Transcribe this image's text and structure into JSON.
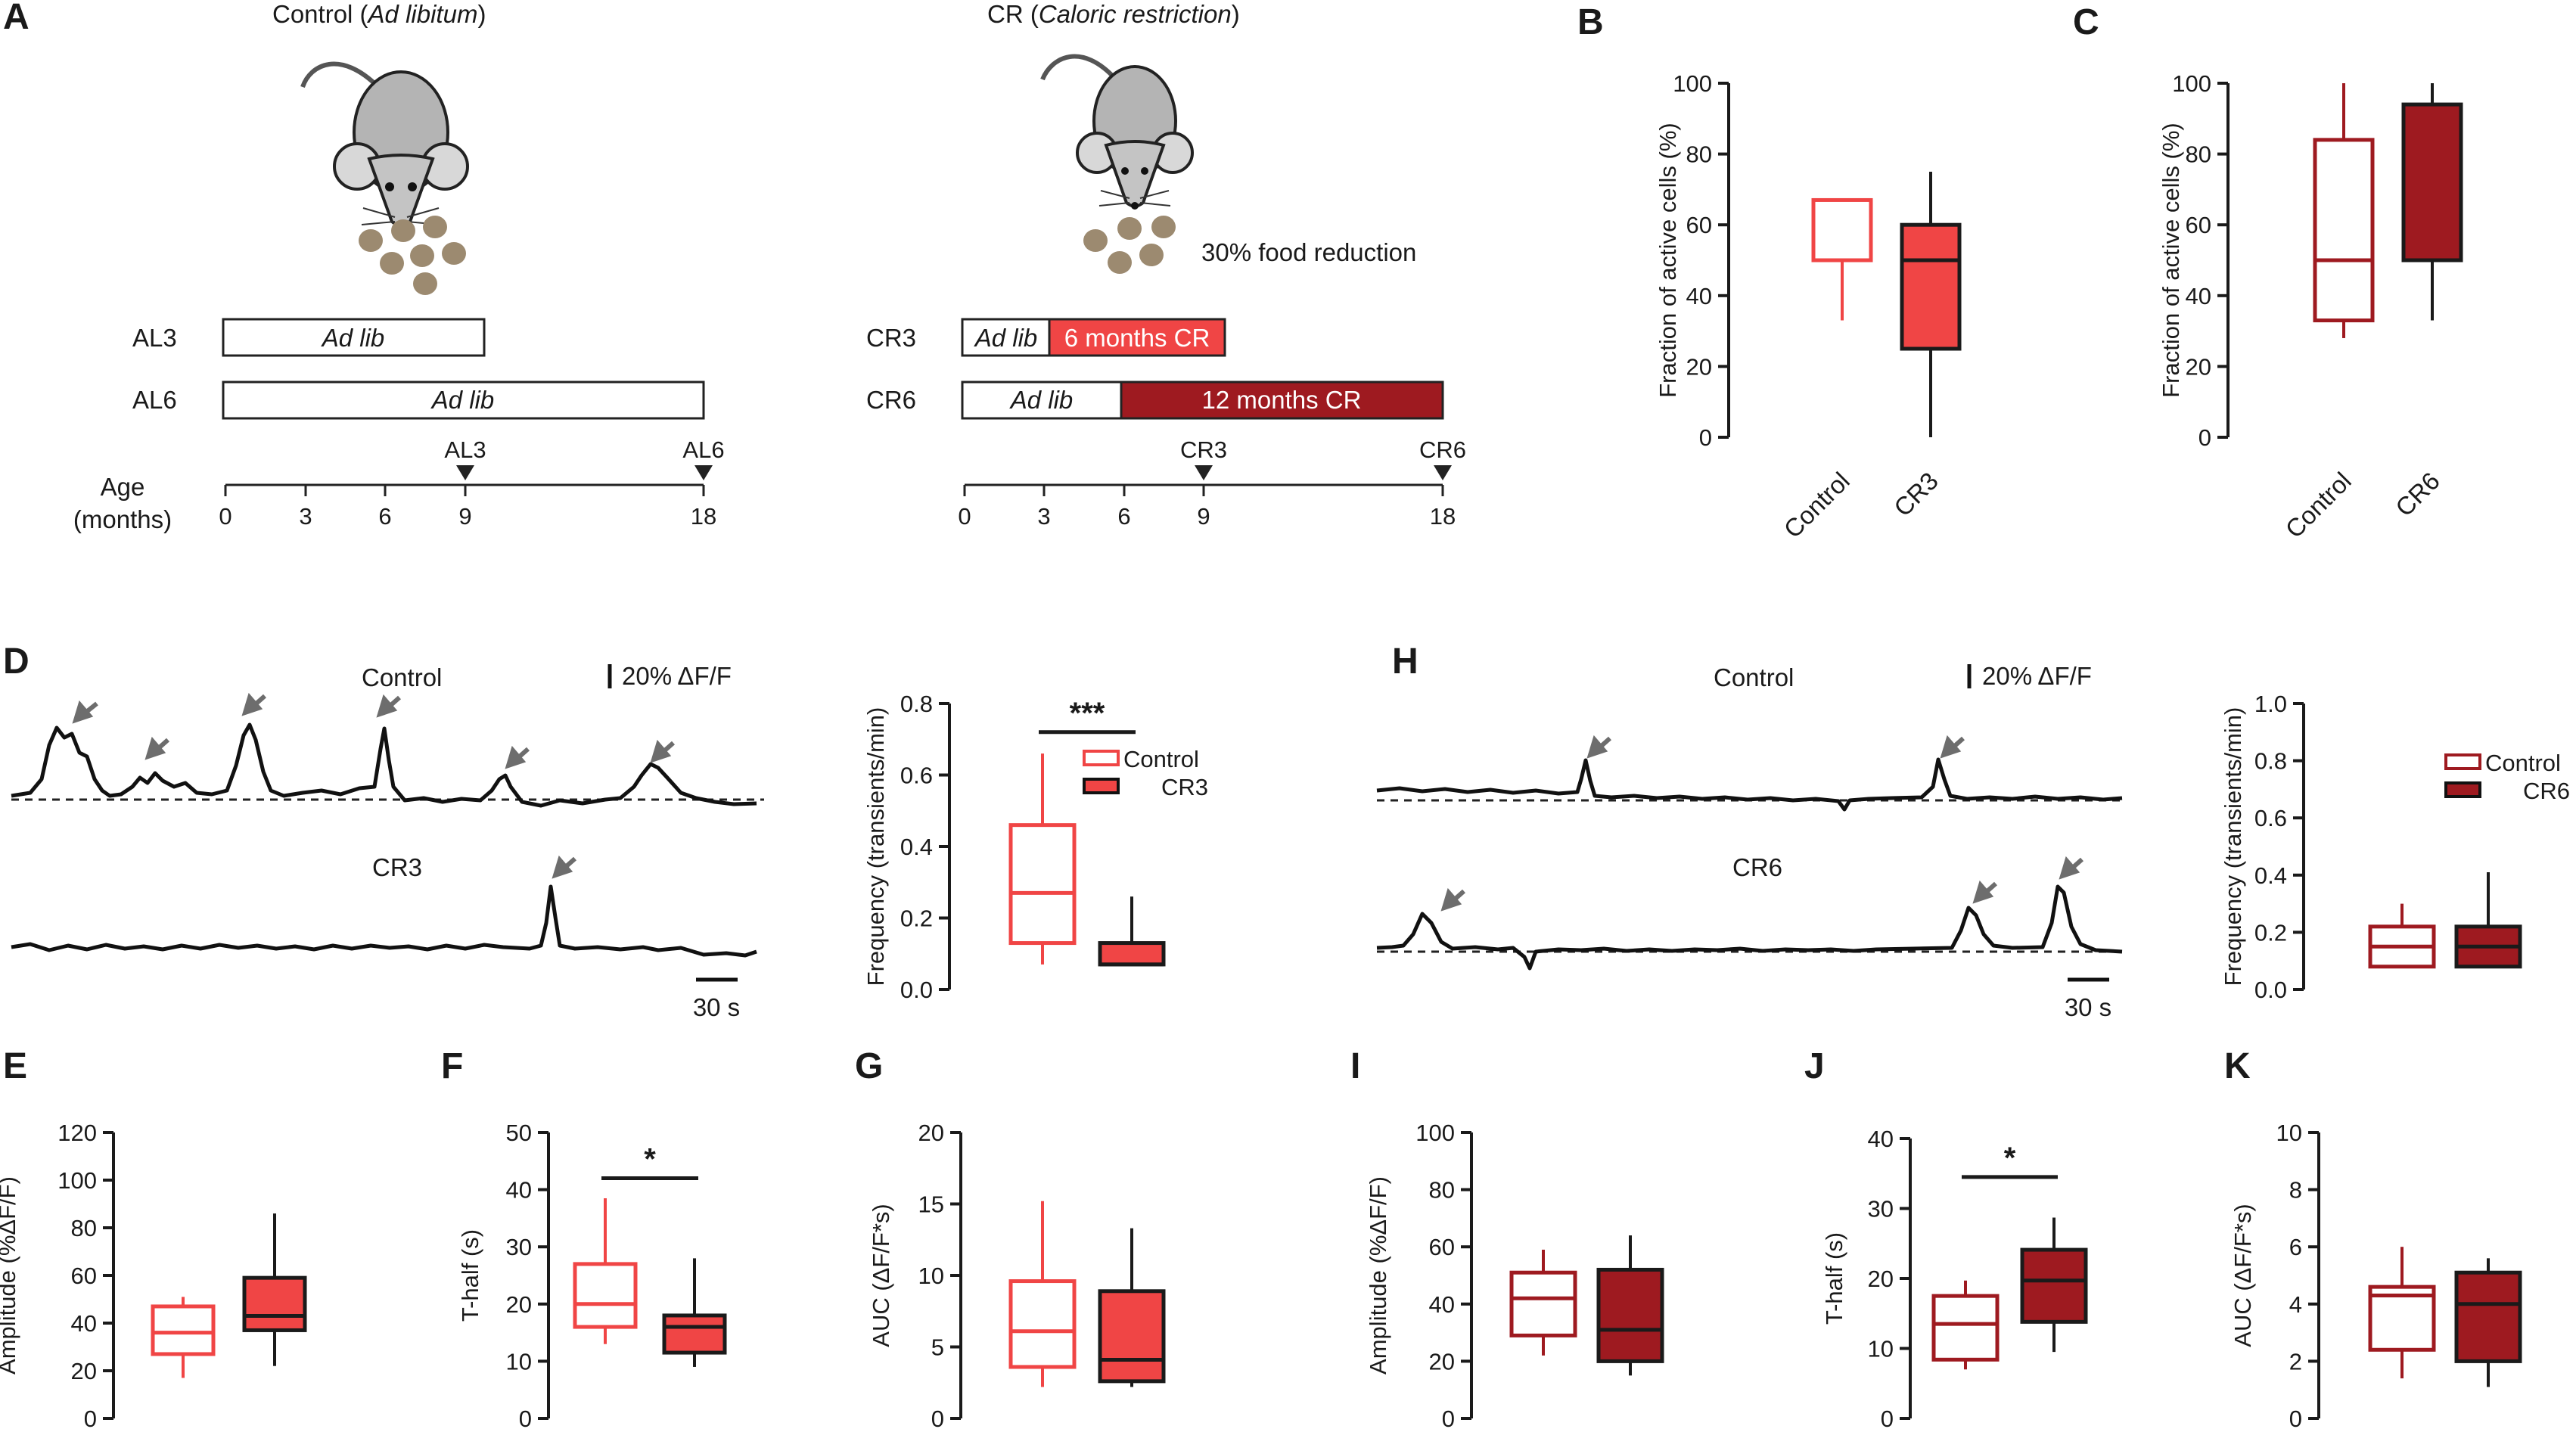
{
  "colors": {
    "cr3": "#f04545",
    "cr6": "#9e1a20",
    "ink": "#1a1a1a",
    "arrow": "#6d6d6d",
    "pellet": "#9c8a70",
    "mouse_body": "#b4b4b4"
  },
  "panel_a": {
    "letter": "A",
    "control_title": "Control (",
    "control_title_ital": "Ad libitum",
    "control_title_end": ")",
    "cr_title": "CR (",
    "cr_title_ital": "Caloric restriction",
    "cr_title_end": ")",
    "food_reduction": "30% food reduction",
    "ad_lib": "Ad lib",
    "cr3_bar": "6 months CR",
    "cr6_bar": "12 months CR",
    "rows": {
      "al3": "AL3",
      "al6": "AL6",
      "cr3": "CR3",
      "cr6": "CR6"
    },
    "age_label_1": "Age",
    "age_label_2": "(months)",
    "ticks": [
      "0",
      "3",
      "6",
      "9",
      "18"
    ],
    "markers": {
      "al3": "AL3",
      "al6": "AL6",
      "cr3": "CR3",
      "cr6": "CR6"
    }
  },
  "traces": {
    "d_letter": "D",
    "h_letter": "H",
    "control": "Control",
    "cr3": "CR3",
    "cr6": "CR6",
    "scale_amp": "20% ΔF/F",
    "scale_time": "30 s"
  },
  "legend": {
    "control": "Control",
    "cr3": "CR3",
    "cr6": "CR6"
  },
  "chart_data": [
    {
      "id": "B",
      "type": "box",
      "ylabel": "Fraction of active cells (%)",
      "ylim": [
        0,
        100
      ],
      "yticks": [
        0,
        20,
        40,
        60,
        80,
        100
      ],
      "categories": [
        "Control",
        "CR3"
      ],
      "series": [
        {
          "name": "Control",
          "min": 33,
          "q1": 50,
          "median": 50,
          "q3": 67,
          "max": 67,
          "filled": false,
          "color": "#f04545"
        },
        {
          "name": "CR3",
          "min": 0,
          "q1": 25,
          "median": 50,
          "q3": 60,
          "max": 75,
          "filled": true,
          "color": "#f04545"
        }
      ]
    },
    {
      "id": "C",
      "type": "box",
      "ylabel": "Fraction of active cells (%)",
      "ylim": [
        0,
        100
      ],
      "yticks": [
        0,
        20,
        40,
        60,
        80,
        100
      ],
      "categories": [
        "Control",
        "CR6"
      ],
      "series": [
        {
          "name": "Control",
          "min": 28,
          "q1": 33,
          "median": 50,
          "q3": 84,
          "max": 100,
          "filled": false,
          "color": "#9e1a20"
        },
        {
          "name": "CR6",
          "min": 33,
          "q1": 50,
          "median": 50,
          "q3": 94,
          "max": 100,
          "filled": true,
          "color": "#9e1a20"
        }
      ]
    },
    {
      "id": "D-freq",
      "type": "box",
      "ylabel": "Frequency (transients/min)",
      "ylim": [
        0,
        0.8
      ],
      "yticks": [
        0.0,
        0.2,
        0.4,
        0.6,
        0.8
      ],
      "tick_decimals": 1,
      "categories": [
        "Control",
        "CR3"
      ],
      "significance": "***",
      "series": [
        {
          "name": "Control",
          "min": 0.07,
          "q1": 0.13,
          "median": 0.27,
          "q3": 0.46,
          "max": 0.66,
          "filled": false,
          "color": "#f04545"
        },
        {
          "name": "CR3",
          "min": 0.07,
          "q1": 0.07,
          "median": 0.07,
          "q3": 0.13,
          "max": 0.26,
          "filled": true,
          "color": "#f04545"
        }
      ]
    },
    {
      "id": "H-freq",
      "type": "box",
      "ylabel": "Frequency (transients/min)",
      "ylim": [
        0,
        1.0
      ],
      "yticks": [
        0.0,
        0.2,
        0.4,
        0.6,
        0.8,
        1.0
      ],
      "tick_decimals": 1,
      "categories": [
        "Control",
        "CR6"
      ],
      "series": [
        {
          "name": "Control",
          "min": 0.08,
          "q1": 0.08,
          "median": 0.15,
          "q3": 0.22,
          "max": 0.3,
          "filled": false,
          "color": "#9e1a20"
        },
        {
          "name": "CR6",
          "min": 0.08,
          "q1": 0.08,
          "median": 0.15,
          "q3": 0.22,
          "max": 0.41,
          "filled": true,
          "color": "#9e1a20"
        }
      ]
    },
    {
      "id": "E",
      "type": "box",
      "ylabel": "Amplitude (%ΔF/F)",
      "ylim": [
        0,
        120
      ],
      "yticks": [
        0,
        20,
        40,
        60,
        80,
        100,
        120
      ],
      "categories": [
        "Control",
        "CR3"
      ],
      "series": [
        {
          "name": "Control",
          "min": 17,
          "q1": 27,
          "median": 36,
          "q3": 47,
          "max": 51,
          "filled": false,
          "color": "#f04545"
        },
        {
          "name": "CR3",
          "min": 22,
          "q1": 37,
          "median": 43,
          "q3": 59,
          "max": 86,
          "filled": true,
          "color": "#f04545"
        }
      ]
    },
    {
      "id": "F",
      "type": "box",
      "ylabel": "T-half (s)",
      "ylim": [
        0,
        50
      ],
      "yticks": [
        0,
        10,
        20,
        30,
        40,
        50
      ],
      "categories": [
        "Control",
        "CR3"
      ],
      "significance": "*",
      "series": [
        {
          "name": "Control",
          "min": 13,
          "q1": 16,
          "median": 20,
          "q3": 27,
          "max": 38.5,
          "filled": false,
          "color": "#f04545"
        },
        {
          "name": "CR3",
          "min": 9,
          "q1": 11.5,
          "median": 16,
          "q3": 18,
          "max": 28,
          "filled": true,
          "color": "#f04545"
        }
      ]
    },
    {
      "id": "G",
      "type": "box",
      "ylabel": "AUC (ΔF/F*s)",
      "ylim": [
        0,
        20
      ],
      "yticks": [
        0,
        5,
        10,
        15,
        20
      ],
      "categories": [
        "Control",
        "CR3"
      ],
      "series": [
        {
          "name": "Control",
          "min": 2.2,
          "q1": 3.6,
          "median": 6.1,
          "q3": 9.6,
          "max": 15.2,
          "filled": false,
          "color": "#f04545"
        },
        {
          "name": "CR3",
          "min": 2.2,
          "q1": 2.6,
          "median": 4.1,
          "q3": 8.9,
          "max": 13.3,
          "filled": true,
          "color": "#f04545"
        }
      ]
    },
    {
      "id": "I",
      "type": "box",
      "ylabel": "Amplitude (%ΔF/F)",
      "ylim": [
        0,
        100
      ],
      "yticks": [
        0,
        20,
        40,
        60,
        80,
        100
      ],
      "categories": [
        "Control",
        "CR6"
      ],
      "series": [
        {
          "name": "Control",
          "min": 22,
          "q1": 29,
          "median": 42,
          "q3": 51,
          "max": 59,
          "filled": false,
          "color": "#9e1a20"
        },
        {
          "name": "CR6",
          "min": 15,
          "q1": 20,
          "median": 31,
          "q3": 52,
          "max": 64,
          "filled": true,
          "color": "#9e1a20"
        }
      ]
    },
    {
      "id": "J",
      "type": "box",
      "ylabel": "T-half (s)",
      "ylim": [
        0,
        40
      ],
      "yticks": [
        0,
        10,
        20,
        30,
        40
      ],
      "categories": [
        "Control",
        "CR6"
      ],
      "significance": "*",
      "series": [
        {
          "name": "Control",
          "min": 7,
          "q1": 8.4,
          "median": 13.5,
          "q3": 17.5,
          "max": 19.7,
          "filled": false,
          "color": "#9e1a20"
        },
        {
          "name": "CR6",
          "min": 9.5,
          "q1": 13.8,
          "median": 19.7,
          "q3": 24.1,
          "max": 28.7,
          "filled": true,
          "color": "#9e1a20"
        }
      ]
    },
    {
      "id": "K",
      "type": "box",
      "ylabel": "AUC (ΔF/F*s)",
      "ylim": [
        0,
        10
      ],
      "yticks": [
        0,
        2,
        4,
        6,
        8,
        10
      ],
      "categories": [
        "Control",
        "CR6"
      ],
      "series": [
        {
          "name": "Control",
          "min": 1.4,
          "q1": 2.4,
          "median": 4.3,
          "q3": 4.6,
          "max": 6.0,
          "filled": false,
          "color": "#9e1a20"
        },
        {
          "name": "CR6",
          "min": 1.1,
          "q1": 2.0,
          "median": 4.0,
          "q3": 5.1,
          "max": 5.6,
          "filled": true,
          "color": "#9e1a20"
        }
      ]
    }
  ]
}
